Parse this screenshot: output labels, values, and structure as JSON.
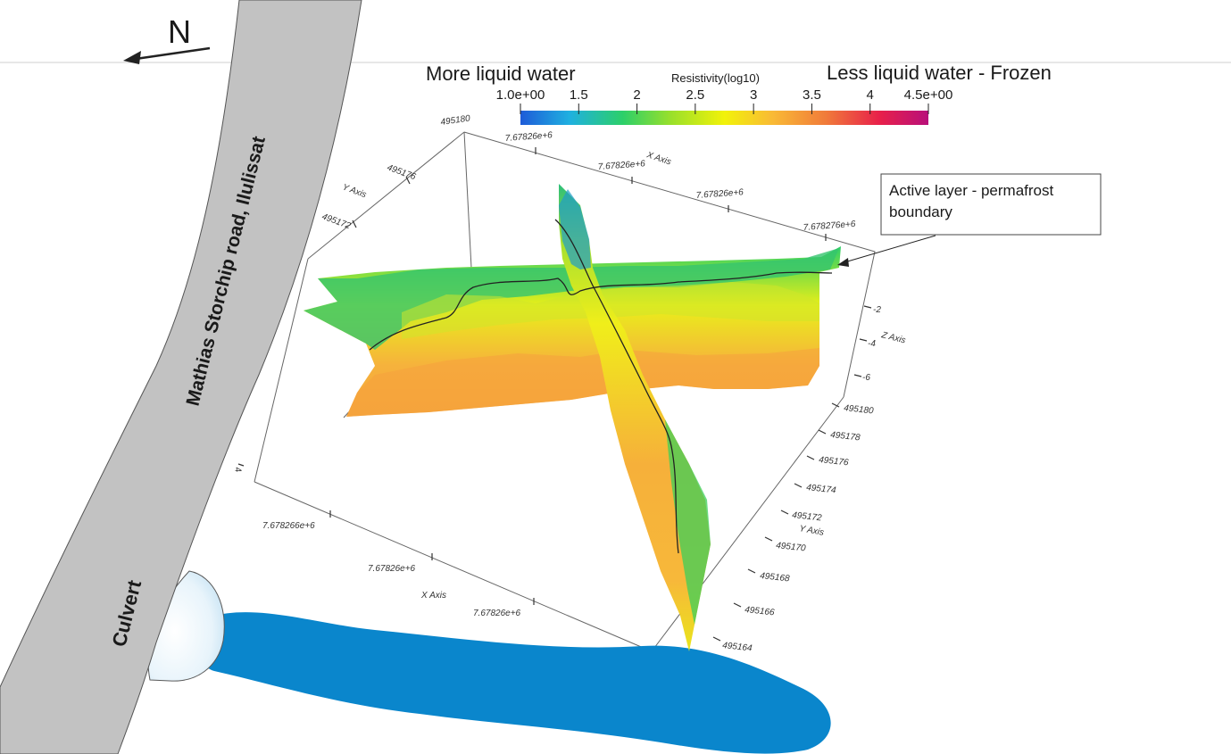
{
  "north_arrow": {
    "label": "N"
  },
  "road": {
    "label": "Mathias Storchip road, Ilulissat",
    "color": "#c2c2c2"
  },
  "culvert": {
    "label": "Culvert"
  },
  "water": {
    "color": "#0a86cc"
  },
  "colorbar": {
    "left_label": "More liquid water",
    "right_label": "Less liquid water - Frozen",
    "title": "Resistivity(log10)",
    "tick_labels": [
      "1.0e+00",
      "1.5",
      "2",
      "2.5",
      "3",
      "3.5",
      "4",
      "4.5e+00"
    ],
    "tick_values": [
      1.0,
      1.5,
      2.0,
      2.5,
      3.0,
      3.5,
      4.0,
      4.5
    ],
    "range": [
      1.0,
      4.5
    ],
    "colors": [
      "#1e5bd8",
      "#1fb0e0",
      "#2ccf6a",
      "#9ae02a",
      "#f2f20a",
      "#f9b936",
      "#f07a3a",
      "#e8204a",
      "#b8107a"
    ]
  },
  "callout": {
    "line1": "Active layer - permafrost",
    "line2": "boundary"
  },
  "axes": {
    "top_corner": "495180",
    "y_top": {
      "title": "Y Axis",
      "ticks": [
        "495176",
        "495172"
      ]
    },
    "x_top": {
      "title": "X Axis",
      "ticks": [
        "7.67826e+6",
        "7.67826e+6",
        "7.67826e+6",
        "7.678276e+6"
      ]
    },
    "z": {
      "title": "Z Axis",
      "ticks": [
        "-2",
        "-4",
        "-6"
      ]
    },
    "y_right": {
      "title": "Y Axis",
      "ticks": [
        "495180",
        "495178",
        "495176",
        "495174",
        "495172",
        "495170",
        "495168",
        "495166",
        "495164"
      ]
    },
    "x_bottom": {
      "title": "X Axis",
      "ticks": [
        "7.678266e+6",
        "7.67826e+6",
        "7.67826e+6"
      ]
    },
    "left_tick": "4"
  }
}
